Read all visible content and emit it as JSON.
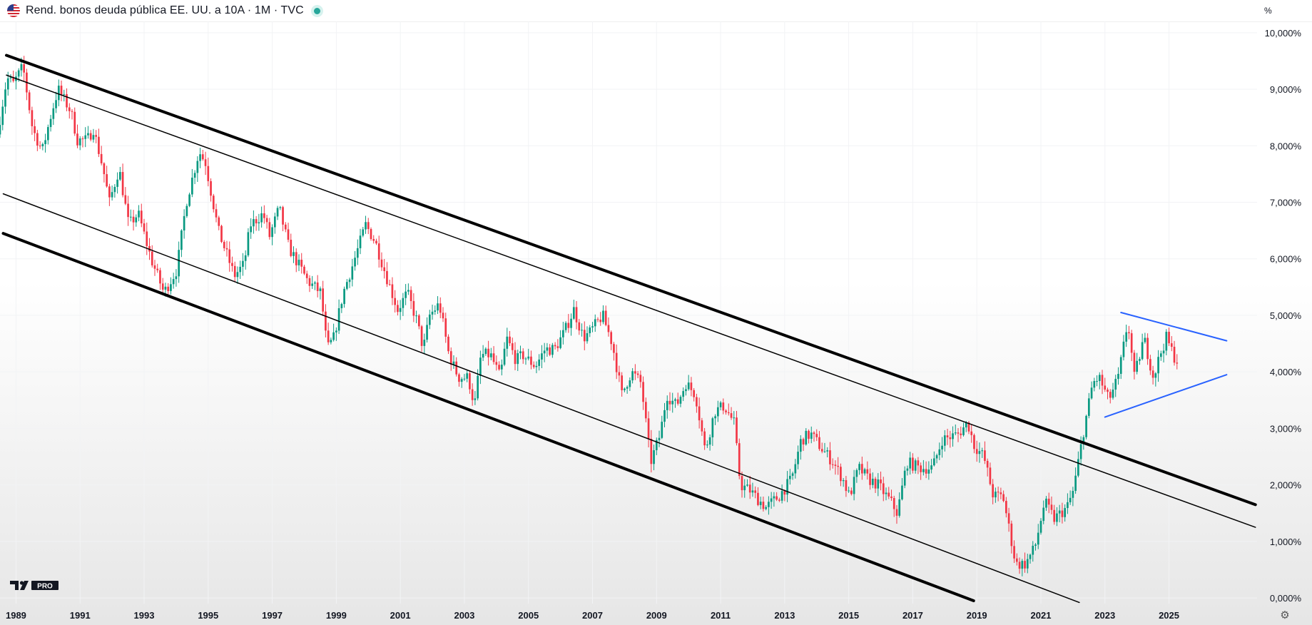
{
  "header": {
    "title": "Rend. bonos deuda pública EE. UU. a 10A · 1M · TVC",
    "unit": "%",
    "flag_icon": "us-flag-icon",
    "live_color": "#26a69a"
  },
  "logo": {
    "text": "PRO"
  },
  "colors": {
    "up": "#089981",
    "down": "#f23645",
    "channel": "#000000",
    "triangle": "#2962ff",
    "grid": "#f2f3f5",
    "axis_text": "#131722"
  },
  "chart_data": {
    "type": "candlestick",
    "title": "Rend. bonos deuda pública EE. UU. a 10A · 1M · TVC",
    "interval": "1M",
    "ylabel": "%",
    "xlim": [
      1988.5,
      2027.75
    ],
    "ylim": [
      -0.1,
      10.2
    ],
    "y_ticks": [
      10,
      9,
      8,
      7,
      6,
      5,
      4,
      3,
      2,
      1,
      0
    ],
    "y_tick_labels": [
      "10,000%",
      "9,000%",
      "8,000%",
      "7,000%",
      "6,000%",
      "5,000%",
      "4,000%",
      "3,000%",
      "2,000%",
      "1,000%",
      "0,000%"
    ],
    "x_ticks": [
      1989,
      1991,
      1993,
      1995,
      1997,
      1999,
      2001,
      2003,
      2005,
      2007,
      2009,
      2011,
      2013,
      2015,
      2017,
      2019,
      2021,
      2023,
      2025
    ],
    "x_tick_labels": [
      "1989",
      "1991",
      "1993",
      "1995",
      "1997",
      "1999",
      "2001",
      "2003",
      "2005",
      "2007",
      "2009",
      "2011",
      "2013",
      "2015",
      "2017",
      "2019",
      "2021",
      "2023",
      "2025"
    ],
    "grid": true,
    "anchors": [
      [
        1988.5,
        8.2
      ],
      [
        1988.8,
        9.2
      ],
      [
        1989.0,
        9.1
      ],
      [
        1989.3,
        9.4
      ],
      [
        1989.6,
        8.3
      ],
      [
        1989.9,
        7.9
      ],
      [
        1990.2,
        8.6
      ],
      [
        1990.4,
        9.0
      ],
      [
        1990.8,
        8.6
      ],
      [
        1991.0,
        8.1
      ],
      [
        1991.3,
        8.1
      ],
      [
        1991.5,
        8.3
      ],
      [
        1991.8,
        7.6
      ],
      [
        1992.0,
        7.0
      ],
      [
        1992.3,
        7.6
      ],
      [
        1992.6,
        6.6
      ],
      [
        1992.9,
        6.8
      ],
      [
        1993.3,
        6.0
      ],
      [
        1993.7,
        5.4
      ],
      [
        1994.1,
        5.8
      ],
      [
        1994.4,
        7.0
      ],
      [
        1994.8,
        7.9
      ],
      [
        1995.0,
        7.7
      ],
      [
        1995.4,
        6.5
      ],
      [
        1995.9,
        5.7
      ],
      [
        1996.2,
        5.9
      ],
      [
        1996.4,
        6.6
      ],
      [
        1996.8,
        6.8
      ],
      [
        1997.0,
        6.4
      ],
      [
        1997.3,
        6.9
      ],
      [
        1997.6,
        6.2
      ],
      [
        1997.9,
        5.9
      ],
      [
        1998.2,
        5.6
      ],
      [
        1998.6,
        5.4
      ],
      [
        1998.8,
        4.4
      ],
      [
        1999.0,
        4.6
      ],
      [
        1999.3,
        5.4
      ],
      [
        1999.6,
        5.9
      ],
      [
        2000.0,
        6.6
      ],
      [
        2000.3,
        6.3
      ],
      [
        2000.7,
        5.6
      ],
      [
        2001.0,
        5.1
      ],
      [
        2001.3,
        5.4
      ],
      [
        2001.6,
        4.9
      ],
      [
        2001.8,
        4.4
      ],
      [
        2002.0,
        5.0
      ],
      [
        2002.3,
        5.2
      ],
      [
        2002.6,
        4.3
      ],
      [
        2002.9,
        3.9
      ],
      [
        2003.2,
        3.9
      ],
      [
        2003.4,
        3.4
      ],
      [
        2003.6,
        4.3
      ],
      [
        2003.9,
        4.3
      ],
      [
        2004.2,
        3.9
      ],
      [
        2004.4,
        4.6
      ],
      [
        2004.7,
        4.2
      ],
      [
        2004.9,
        4.3
      ],
      [
        2005.3,
        4.1
      ],
      [
        2005.6,
        4.4
      ],
      [
        2005.9,
        4.4
      ],
      [
        2006.2,
        4.7
      ],
      [
        2006.5,
        5.1
      ],
      [
        2006.8,
        4.6
      ],
      [
        2007.0,
        4.7
      ],
      [
        2007.4,
        5.0
      ],
      [
        2007.7,
        4.5
      ],
      [
        2008.0,
        3.6
      ],
      [
        2008.3,
        4.0
      ],
      [
        2008.6,
        3.8
      ],
      [
        2008.9,
        2.4
      ],
      [
        2009.2,
        2.9
      ],
      [
        2009.4,
        3.6
      ],
      [
        2009.7,
        3.4
      ],
      [
        2010.0,
        3.8
      ],
      [
        2010.3,
        3.6
      ],
      [
        2010.6,
        2.6
      ],
      [
        2010.9,
        3.3
      ],
      [
        2011.2,
        3.4
      ],
      [
        2011.5,
        3.1
      ],
      [
        2011.7,
        2.0
      ],
      [
        2012.0,
        1.9
      ],
      [
        2012.5,
        1.6
      ],
      [
        2012.9,
        1.8
      ],
      [
        2013.3,
        2.1
      ],
      [
        2013.6,
        2.8
      ],
      [
        2013.9,
        2.9
      ],
      [
        2014.3,
        2.6
      ],
      [
        2014.6,
        2.4
      ],
      [
        2014.9,
        2.1
      ],
      [
        2015.1,
        1.8
      ],
      [
        2015.4,
        2.3
      ],
      [
        2015.7,
        2.1
      ],
      [
        2016.0,
        2.0
      ],
      [
        2016.4,
        1.7
      ],
      [
        2016.6,
        1.5
      ],
      [
        2016.9,
        2.4
      ],
      [
        2017.3,
        2.3
      ],
      [
        2017.7,
        2.3
      ],
      [
        2018.0,
        2.8
      ],
      [
        2018.5,
        2.9
      ],
      [
        2018.8,
        3.1
      ],
      [
        2019.0,
        2.7
      ],
      [
        2019.3,
        2.5
      ],
      [
        2019.6,
        1.8
      ],
      [
        2019.9,
        1.8
      ],
      [
        2020.1,
        1.2
      ],
      [
        2020.3,
        0.6
      ],
      [
        2020.6,
        0.6
      ],
      [
        2020.9,
        0.9
      ],
      [
        2021.2,
        1.7
      ],
      [
        2021.5,
        1.4
      ],
      [
        2021.9,
        1.6
      ],
      [
        2022.1,
        1.9
      ],
      [
        2022.4,
        2.9
      ],
      [
        2022.7,
        3.8
      ],
      [
        2022.9,
        3.9
      ],
      [
        2023.2,
        3.5
      ],
      [
        2023.5,
        3.9
      ],
      [
        2023.8,
        4.9
      ],
      [
        2024.0,
        3.9
      ],
      [
        2024.3,
        4.6
      ],
      [
        2024.6,
        3.9
      ],
      [
        2024.8,
        4.3
      ],
      [
        2025.0,
        4.6
      ],
      [
        2025.3,
        4.2
      ]
    ],
    "drawings": [
      {
        "name": "channel-upper-bold",
        "points": [
          [
            1988.7,
            9.6
          ],
          [
            2027.7,
            1.65
          ]
        ],
        "width": 4,
        "color": "#000000"
      },
      {
        "name": "channel-upper-thin",
        "points": [
          [
            1988.7,
            9.25
          ],
          [
            2027.7,
            1.25
          ]
        ],
        "width": 1.5,
        "color": "#000000"
      },
      {
        "name": "channel-lower-thin",
        "points": [
          [
            1988.6,
            7.15
          ],
          [
            2022.2,
            -0.08
          ]
        ],
        "width": 1.5,
        "color": "#000000"
      },
      {
        "name": "channel-lower-bold",
        "points": [
          [
            1988.6,
            6.45
          ],
          [
            2018.9,
            -0.05
          ]
        ],
        "width": 4,
        "color": "#000000"
      },
      {
        "name": "triangle-upper",
        "points": [
          [
            2023.5,
            5.05
          ],
          [
            2026.8,
            4.55
          ]
        ],
        "width": 2,
        "color": "#2962ff"
      },
      {
        "name": "triangle-lower",
        "points": [
          [
            2023.0,
            3.2
          ],
          [
            2026.8,
            3.95
          ]
        ],
        "width": 2,
        "color": "#2962ff"
      }
    ]
  }
}
